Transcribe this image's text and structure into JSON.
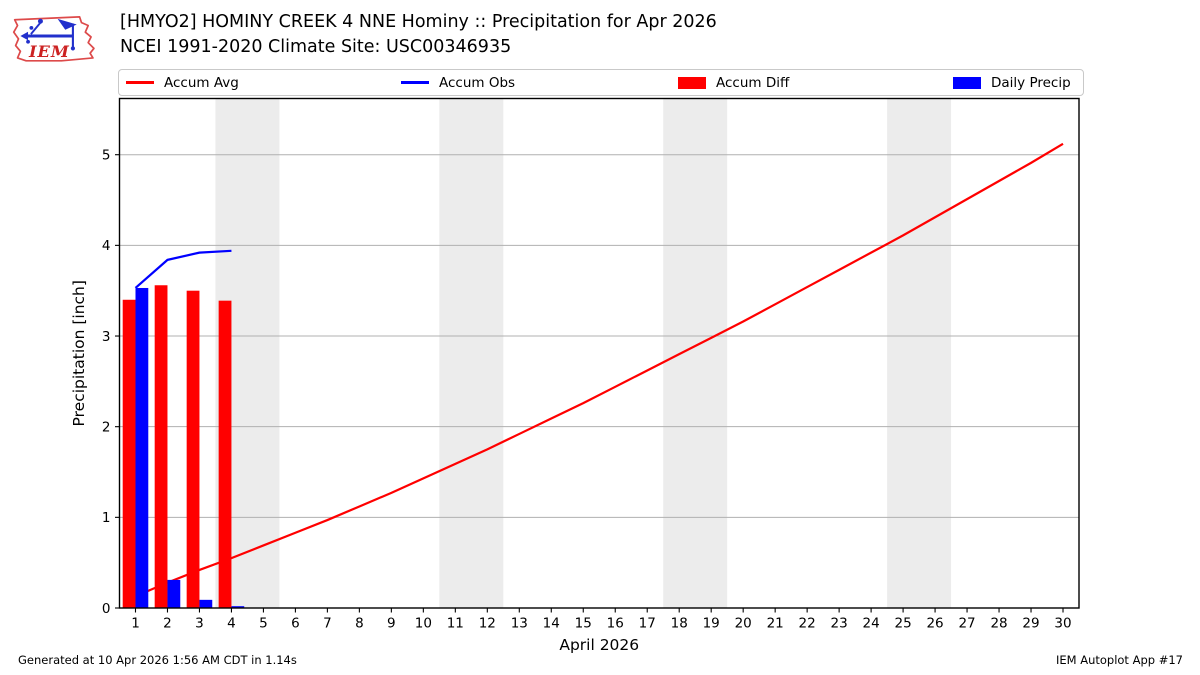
{
  "header": {
    "logo_text": "IEM",
    "title": "[HMYO2] HOMINY CREEK 4 NNE Hominy :: Precipitation for Apr 2026",
    "subtitle": "NCEI 1991-2020 Climate Site: USC00346935"
  },
  "legend": {
    "items": [
      {
        "label": "Accum Avg",
        "type": "line",
        "color": "#ff0000"
      },
      {
        "label": "Accum Obs",
        "type": "line",
        "color": "#0000ff"
      },
      {
        "label": "Accum Diff",
        "type": "box",
        "color": "#ff0000"
      },
      {
        "label": "Daily Precip",
        "type": "box",
        "color": "#0000ff"
      }
    ]
  },
  "footer": {
    "generated": "Generated at 10 Apr 2026 1:56 AM CDT in 1.14s",
    "app": "IEM Autoplot App #17"
  },
  "chart_data": {
    "type": "line+bar combo",
    "title": "[HMYO2] HOMINY CREEK 4 NNE Hominy :: Precipitation for Apr 2026",
    "subtitle": "NCEI 1991-2020 Climate Site: USC00346935",
    "xlabel": "April 2026",
    "ylabel": "Precipitation [inch]",
    "xlim": [
      0.5,
      30.5
    ],
    "ylim": [
      0,
      5.62
    ],
    "xticks": [
      1,
      2,
      3,
      4,
      5,
      6,
      7,
      8,
      9,
      10,
      11,
      12,
      13,
      14,
      15,
      16,
      17,
      18,
      19,
      20,
      21,
      22,
      23,
      24,
      25,
      26,
      27,
      28,
      29,
      30
    ],
    "yticks": [
      0,
      1,
      2,
      3,
      4,
      5
    ],
    "grid": "horizontal",
    "grid_color": "#b0b0b0",
    "weekend_shading_color": "#ececec",
    "weekend_bands_x": [
      [
        3.5,
        5.5
      ],
      [
        10.5,
        12.5
      ],
      [
        17.5,
        19.5
      ],
      [
        24.5,
        26.5
      ]
    ],
    "series": [
      {
        "name": "Accum Avg",
        "type": "line",
        "color": "#ff0000",
        "x": [
          1,
          2,
          3,
          4,
          5,
          6,
          7,
          8,
          9,
          10,
          11,
          12,
          13,
          14,
          15,
          16,
          17,
          18,
          19,
          20,
          21,
          22,
          23,
          24,
          25,
          26,
          27,
          28,
          29,
          30
        ],
        "y": [
          0.13,
          0.28,
          0.42,
          0.55,
          0.69,
          0.83,
          0.97,
          1.12,
          1.27,
          1.43,
          1.59,
          1.75,
          1.92,
          2.09,
          2.26,
          2.44,
          2.62,
          2.8,
          2.98,
          3.16,
          3.35,
          3.54,
          3.73,
          3.92,
          4.11,
          4.31,
          4.51,
          4.71,
          4.91,
          5.12
        ]
      },
      {
        "name": "Accum Obs",
        "type": "line",
        "color": "#0000ff",
        "x": [
          1,
          2,
          3,
          4
        ],
        "y": [
          3.53,
          3.84,
          3.92,
          3.94
        ]
      },
      {
        "name": "Accum Diff",
        "type": "bar",
        "color": "#ff0000",
        "bar_offset": -0.4,
        "bar_width": 0.4,
        "x": [
          1,
          2,
          3,
          4
        ],
        "y": [
          3.4,
          3.56,
          3.5,
          3.39
        ]
      },
      {
        "name": "Daily Precip",
        "type": "bar",
        "color": "#0000ff",
        "bar_offset": 0,
        "bar_width": 0.4,
        "x": [
          1,
          2,
          3,
          4
        ],
        "y": [
          3.53,
          0.31,
          0.09,
          0.02
        ]
      }
    ]
  }
}
